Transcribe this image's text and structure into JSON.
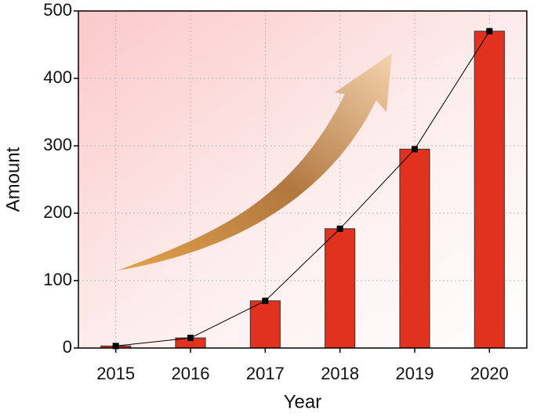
{
  "chart_data": {
    "type": "bar",
    "x_label": "Year",
    "y_label": "Amount",
    "categories": [
      "2015",
      "2016",
      "2017",
      "2018",
      "2019",
      "2020"
    ],
    "values": [
      3,
      15,
      70,
      177,
      295,
      470
    ],
    "color": "#e0321e",
    "line_overlay": true,
    "line_color": "#000000",
    "ylim": [
      0,
      500
    ],
    "yticks": [
      0,
      100,
      200,
      300,
      400,
      500
    ],
    "grid": true
  }
}
